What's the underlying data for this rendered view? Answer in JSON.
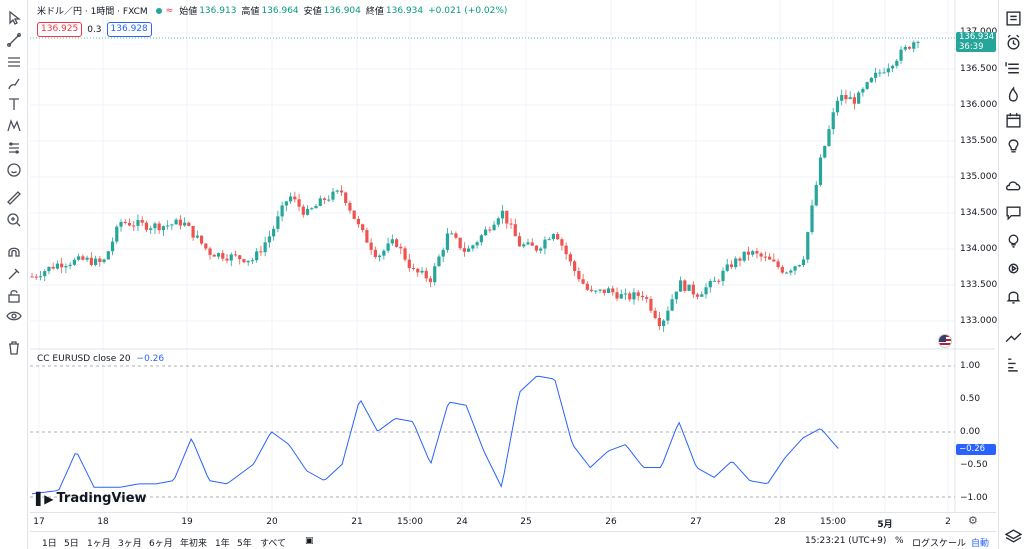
{
  "legend": {
    "symbol": "米ドル／円 · 1時間 · FXCM",
    "open_label": "始値",
    "open": "136.913",
    "high_label": "高値",
    "high": "136.964",
    "low_label": "安値",
    "low": "136.904",
    "close_label": "終値",
    "close": "136.934",
    "change": "+0.021 (+0.02%)",
    "sell_price": "136.925",
    "spread": "0.3",
    "buy_price": "136.928"
  },
  "indicator": {
    "name": "CC EURUSD close 20",
    "value": "−0.26"
  },
  "price_axis": {
    "labels": [
      "137.000",
      "136.500",
      "136.000",
      "135.500",
      "135.000",
      "134.500",
      "134.000",
      "133.500",
      "133.000"
    ],
    "current_price": "136.934",
    "countdown": "36:39"
  },
  "indicator_axis": {
    "labels": [
      "1.00",
      "0.50",
      "0.00",
      "−0.50",
      "−1.00"
    ],
    "current_value": "−0.26"
  },
  "time_axis": {
    "labels": [
      "17",
      "18",
      "19",
      "20",
      "21",
      "15:00",
      "24",
      "25",
      "26",
      "27",
      "28",
      "15:00",
      "5月",
      "2"
    ]
  },
  "bottom_bar": {
    "ranges": [
      "1日",
      "5日",
      "1ヶ月",
      "3ヶ月",
      "6ヶ月",
      "年初来",
      "1年",
      "5年",
      "すべて"
    ],
    "time": "15:23:21 (UTC+9)",
    "percent": "%",
    "log_scale": "ログスケール",
    "auto": "自動"
  },
  "logo": {
    "text": "TradingView"
  },
  "colors": {
    "up": "#26a69a",
    "down": "#ef5350",
    "indicator": "#2962ff"
  },
  "chart_data": {
    "type": "candlestick",
    "y_range": [
      132.75,
      137.0
    ],
    "indicator_range": [
      -1.1,
      1.1
    ],
    "price_path": [
      [
        0,
        133.78
      ],
      [
        3,
        133.95
      ],
      [
        6,
        134.0
      ],
      [
        8,
        133.95
      ],
      [
        10,
        134.5
      ],
      [
        13,
        134.45
      ],
      [
        15,
        134.45
      ],
      [
        17,
        134.5
      ],
      [
        20,
        134.1
      ],
      [
        22,
        134.05
      ],
      [
        25,
        134.0
      ],
      [
        27,
        134.35
      ],
      [
        29,
        134.85
      ],
      [
        31,
        134.6
      ],
      [
        33,
        134.8
      ],
      [
        35,
        134.9
      ],
      [
        37,
        134.4
      ],
      [
        39,
        134.05
      ],
      [
        41,
        134.25
      ],
      [
        43,
        133.85
      ],
      [
        45,
        133.75
      ],
      [
        47,
        134.35
      ],
      [
        49,
        134.1
      ],
      [
        51,
        134.35
      ],
      [
        53,
        134.65
      ],
      [
        55,
        134.2
      ],
      [
        57,
        134.15
      ],
      [
        59,
        134.4
      ],
      [
        61,
        133.9
      ],
      [
        63,
        133.55
      ],
      [
        65,
        133.6
      ],
      [
        67,
        133.5
      ],
      [
        69,
        133.55
      ],
      [
        71,
        133.15
      ],
      [
        73,
        133.7
      ],
      [
        75,
        133.55
      ],
      [
        77,
        133.7
      ],
      [
        79,
        133.95
      ],
      [
        81,
        134.1
      ],
      [
        83,
        134.0
      ],
      [
        85,
        133.85
      ],
      [
        87,
        134.0
      ],
      [
        89,
        135.3
      ],
      [
        91,
        136.15
      ],
      [
        93,
        136.1
      ],
      [
        95,
        136.4
      ],
      [
        97,
        136.6
      ],
      [
        100,
        136.93
      ]
    ],
    "indicator_path": [
      [
        0,
        -0.95
      ],
      [
        3,
        -0.9
      ],
      [
        5,
        -0.3
      ],
      [
        7,
        -0.85
      ],
      [
        10,
        -0.85
      ],
      [
        12,
        -0.8
      ],
      [
        14,
        -0.8
      ],
      [
        16,
        -0.75
      ],
      [
        18,
        -0.1
      ],
      [
        20,
        -0.75
      ],
      [
        22,
        -0.8
      ],
      [
        25,
        -0.5
      ],
      [
        27,
        0.0
      ],
      [
        29,
        -0.2
      ],
      [
        31,
        -0.6
      ],
      [
        33,
        -0.75
      ],
      [
        35,
        -0.5
      ],
      [
        37,
        0.5
      ],
      [
        39,
        0.0
      ],
      [
        41,
        0.2
      ],
      [
        43,
        0.15
      ],
      [
        45,
        -0.5
      ],
      [
        47,
        0.45
      ],
      [
        49,
        0.4
      ],
      [
        51,
        -0.3
      ],
      [
        53,
        -0.85
      ],
      [
        55,
        0.6
      ],
      [
        57,
        0.85
      ],
      [
        59,
        0.8
      ],
      [
        61,
        -0.2
      ],
      [
        63,
        -0.55
      ],
      [
        65,
        -0.3
      ],
      [
        67,
        -0.2
      ],
      [
        69,
        -0.55
      ],
      [
        71,
        -0.55
      ],
      [
        73,
        0.15
      ],
      [
        75,
        -0.55
      ],
      [
        77,
        -0.7
      ],
      [
        79,
        -0.45
      ],
      [
        81,
        -0.75
      ],
      [
        83,
        -0.8
      ],
      [
        85,
        -0.4
      ],
      [
        87,
        -0.1
      ],
      [
        89,
        0.05
      ],
      [
        91,
        -0.26
      ]
    ]
  }
}
